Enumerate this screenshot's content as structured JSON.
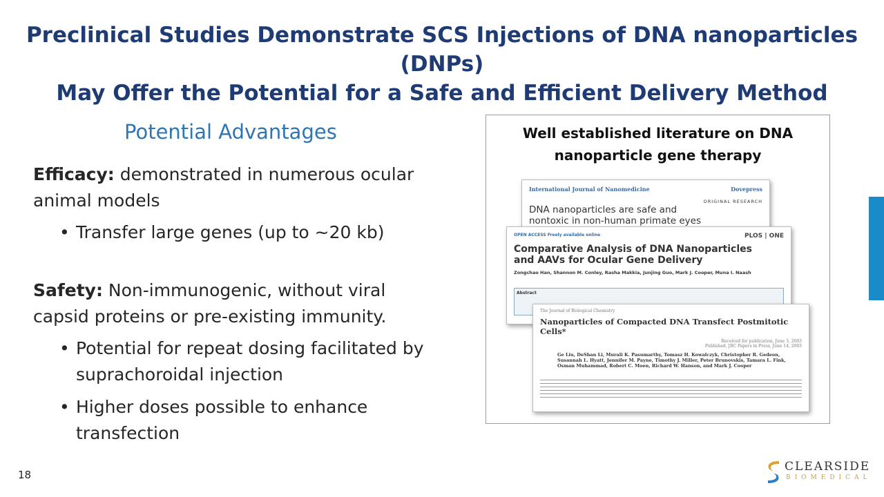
{
  "title": {
    "line1": "Preclinical Studies Demonstrate SCS Injections of DNA nanoparticles (DNPs)",
    "line2": "May Offer the Potential for a Safe and Efficient Delivery Method"
  },
  "left": {
    "subtitle": "Potential Advantages",
    "efficacy_label": "Efficacy:",
    "efficacy_text": " demonstrated in numerous ocular animal models",
    "efficacy_bullets": [
      "Transfer large genes (up to ~20 kb)"
    ],
    "safety_label": "Safety:",
    "safety_text": " Non-immunogenic, without viral capsid proteins or pre-existing immunity.",
    "safety_bullets": [
      "Potential for repeat dosing facilitated by suprachoroidal injection",
      "Higher doses possible to enhance transfection"
    ]
  },
  "right": {
    "heading": "Well established literature on DNA nanoparticle gene therapy",
    "papers": [
      {
        "journal": "International Journal of Nanomedicine",
        "publisher": "Dovepress",
        "type": "ORIGINAL RESEARCH",
        "title": "DNA nanoparticles are safe and nontoxic in non-human primate eyes"
      },
      {
        "journal": "OPEN ACCESS Freely available online",
        "publisher": "PLOS | ONE",
        "title": "Comparative Analysis of DNA Nanoparticles and AAVs for Ocular Gene Delivery",
        "authors": "Zongchao Han, Shannon M. Conley, Rasha Makkia, Junjing Guo, Mark J. Cooper, Muna I. Naash",
        "section": "Abstract"
      },
      {
        "journal": "The Journal of Biological Chemistry",
        "title": "Nanoparticles of Compacted DNA Transfect Postmitotic Cells*",
        "received": "Received for publication, June 3, 2003",
        "published": "Published, JBC Papers in Press, June 14, 2003",
        "authors": "Ge Liu, DeShan Li, Murali K. Pasumarthy, Tomasz H. Kowalczyk, Christopher R. Gedeon, Susannah L. Hyatt, Jennifer M. Payne, Timothy J. Miller, Peter Brunovskis, Tamara L. Fink, Osman Muhammad, Robert C. Moen, Richard W. Hanson, and Mark J. Cooper"
      }
    ]
  },
  "page_number": "18",
  "logo": {
    "name": "CLEARSIDE",
    "tagline": "BIOMEDICAL"
  },
  "colors": {
    "title": "#1F3B73",
    "subtitle": "#2E75B6",
    "accent_bar": "#1A8BC8"
  }
}
